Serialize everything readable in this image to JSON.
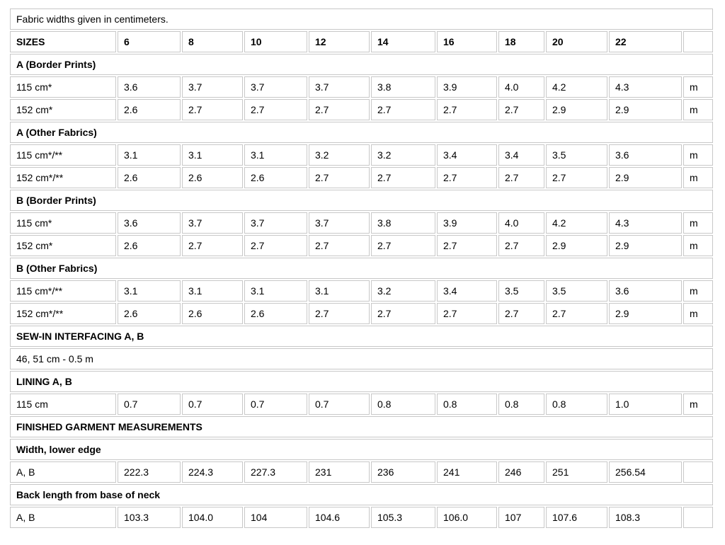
{
  "colors": {
    "border": "#c8c8c8",
    "text": "#000000",
    "background": "#ffffff"
  },
  "table": {
    "note": "Fabric widths given in centimeters.",
    "columns_count": 11,
    "rows": [
      {
        "type": "text",
        "label": "Fabric widths given in centimeters."
      },
      {
        "type": "header",
        "label": "SIZES",
        "values": [
          "6",
          "8",
          "10",
          "12",
          "14",
          "16",
          "18",
          "20",
          "22"
        ],
        "unit": ""
      },
      {
        "type": "section",
        "label": "A (Border Prints)"
      },
      {
        "type": "data",
        "label": "115 cm*",
        "values": [
          "3.6",
          "3.7",
          "3.7",
          "3.7",
          "3.8",
          "3.9",
          "4.0",
          "4.2",
          "4.3"
        ],
        "unit": "m"
      },
      {
        "type": "data",
        "label": "152 cm*",
        "values": [
          "2.6",
          "2.7",
          "2.7",
          "2.7",
          "2.7",
          "2.7",
          "2.7",
          "2.9",
          "2.9"
        ],
        "unit": "m"
      },
      {
        "type": "section",
        "label": "A (Other Fabrics)"
      },
      {
        "type": "data",
        "label": "115 cm*/**",
        "values": [
          "3.1",
          "3.1",
          "3.1",
          "3.2",
          "3.2",
          "3.4",
          "3.4",
          "3.5",
          "3.6"
        ],
        "unit": "m"
      },
      {
        "type": "data",
        "label": "152 cm*/**",
        "values": [
          "2.6",
          "2.6",
          "2.6",
          "2.7",
          "2.7",
          "2.7",
          "2.7",
          "2.7",
          "2.9"
        ],
        "unit": "m"
      },
      {
        "type": "section",
        "label": "B (Border Prints)"
      },
      {
        "type": "data",
        "label": "115 cm*",
        "values": [
          "3.6",
          "3.7",
          "3.7",
          "3.7",
          "3.8",
          "3.9",
          "4.0",
          "4.2",
          "4.3"
        ],
        "unit": "m"
      },
      {
        "type": "data",
        "label": "152 cm*",
        "values": [
          "2.6",
          "2.7",
          "2.7",
          "2.7",
          "2.7",
          "2.7",
          "2.7",
          "2.9",
          "2.9"
        ],
        "unit": "m"
      },
      {
        "type": "section",
        "label": "B (Other Fabrics)"
      },
      {
        "type": "data",
        "label": "115 cm*/**",
        "values": [
          "3.1",
          "3.1",
          "3.1",
          "3.1",
          "3.2",
          "3.4",
          "3.5",
          "3.5",
          "3.6"
        ],
        "unit": "m"
      },
      {
        "type": "data",
        "label": "152 cm*/**",
        "values": [
          "2.6",
          "2.6",
          "2.6",
          "2.7",
          "2.7",
          "2.7",
          "2.7",
          "2.7",
          "2.9"
        ],
        "unit": "m"
      },
      {
        "type": "section",
        "label": "SEW-IN INTERFACING A, B"
      },
      {
        "type": "text",
        "label": "46, 51 cm - 0.5 m"
      },
      {
        "type": "section",
        "label": "LINING A, B"
      },
      {
        "type": "data",
        "label": "115 cm",
        "values": [
          "0.7",
          "0.7",
          "0.7",
          "0.7",
          "0.8",
          "0.8",
          "0.8",
          "0.8",
          "1.0"
        ],
        "unit": "m"
      },
      {
        "type": "section",
        "label": "FINISHED GARMENT MEASUREMENTS"
      },
      {
        "type": "section",
        "label": "Width, lower edge"
      },
      {
        "type": "data",
        "label": "A, B",
        "values": [
          "222.3",
          "224.3",
          "227.3",
          "231",
          "236",
          "241",
          "246",
          "251",
          "256.54"
        ],
        "unit": ""
      },
      {
        "type": "section",
        "label": "Back length from base of neck"
      },
      {
        "type": "data",
        "label": "A, B",
        "values": [
          "103.3",
          "104.0",
          "104",
          "104.6",
          "105.3",
          "106.0",
          "107",
          "107.6",
          "108.3"
        ],
        "unit": ""
      }
    ]
  }
}
